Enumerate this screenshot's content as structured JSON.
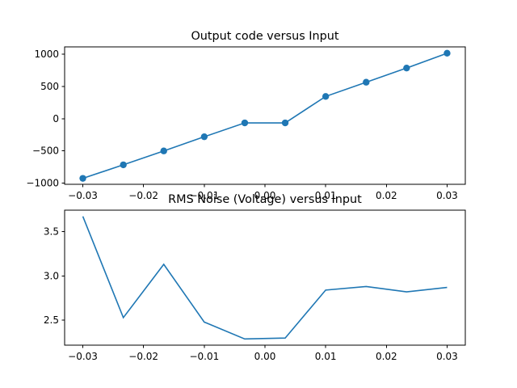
{
  "chart_data": [
    {
      "type": "line",
      "title": "Output code versus Input",
      "xlabel": "",
      "ylabel": "",
      "markers": true,
      "color": "#1f77b4",
      "xlim": [
        -0.033,
        0.033
      ],
      "ylim": [
        -1017,
        1113
      ],
      "xticks": [
        -0.03,
        -0.02,
        -0.01,
        0.0,
        0.01,
        0.02,
        0.03
      ],
      "xtick_labels": [
        "−0.03",
        "−0.02",
        "−0.01",
        "0.00",
        "0.01",
        "0.02",
        "0.03"
      ],
      "yticks": [
        -1000,
        -500,
        0,
        500,
        1000
      ],
      "ytick_labels": [
        "−1000",
        "−500",
        "0",
        "500",
        "1000"
      ],
      "x": [
        -0.03,
        -0.02333,
        -0.01667,
        -0.01,
        -0.00333,
        0.00333,
        0.01,
        0.01667,
        0.02333,
        0.03
      ],
      "y": [
        -925,
        -715,
        -500,
        -280,
        -65,
        -65,
        345,
        565,
        785,
        1015
      ]
    },
    {
      "type": "line",
      "title": "RMS Noise (Voltage) versus Input",
      "xlabel": "",
      "ylabel": "",
      "markers": false,
      "color": "#1f77b4",
      "xlim": [
        -0.033,
        0.033
      ],
      "ylim": [
        2.22,
        3.74
      ],
      "xticks": [
        -0.03,
        -0.02,
        -0.01,
        0.0,
        0.01,
        0.02,
        0.03
      ],
      "xtick_labels": [
        "−0.03",
        "−0.02",
        "−0.01",
        "0.00",
        "0.01",
        "0.02",
        "0.03"
      ],
      "yticks": [
        2.5,
        3.0,
        3.5
      ],
      "ytick_labels": [
        "2.5",
        "3.0",
        "3.5"
      ],
      "x": [
        -0.03,
        -0.02333,
        -0.01667,
        -0.01,
        -0.00333,
        0.00333,
        0.01,
        0.01667,
        0.02333,
        0.03
      ],
      "y": [
        3.67,
        2.53,
        3.13,
        2.48,
        2.29,
        2.3,
        2.84,
        2.88,
        2.82,
        2.87
      ]
    }
  ]
}
